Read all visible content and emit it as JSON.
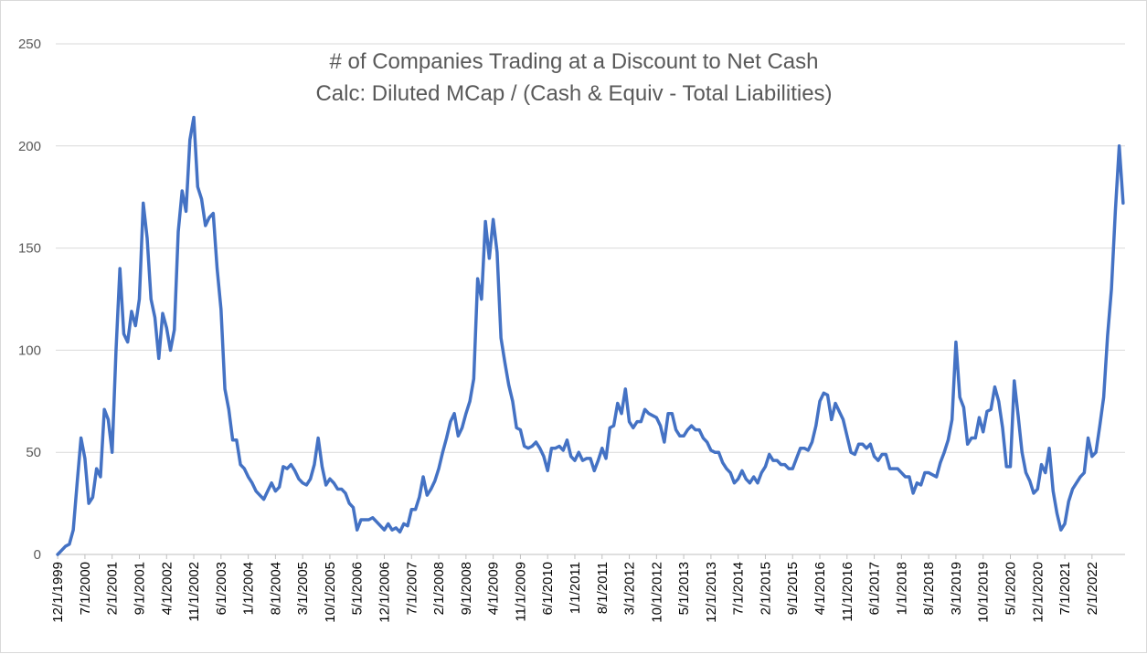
{
  "chart_data": {
    "type": "line",
    "title": "# of Companies Trading at a Discount to Net Cash",
    "subtitle": "Calc: Diluted MCap / (Cash & Equiv - Total Liabilities)",
    "xlabel": "",
    "ylabel": "",
    "ylim": [
      0,
      250
    ],
    "yticks": [
      "0",
      "50",
      "100",
      "150",
      "200",
      "250"
    ],
    "xticks": [
      "12/1/1999",
      "7/1/2000",
      "2/1/2001",
      "9/1/2001",
      "4/1/2002",
      "11/1/2002",
      "6/1/2003",
      "1/1/2004",
      "8/1/2004",
      "3/1/2005",
      "10/1/2005",
      "5/1/2006",
      "12/1/2006",
      "7/1/2007",
      "2/1/2008",
      "9/1/2008",
      "4/1/2009",
      "11/1/2009",
      "6/1/2010",
      "1/1/2011",
      "8/1/2011",
      "3/1/2012",
      "10/1/2012",
      "5/1/2013",
      "12/1/2013",
      "7/1/2014",
      "2/1/2015",
      "9/1/2015",
      "4/1/2016",
      "11/1/2016",
      "6/1/2017",
      "1/1/2018",
      "8/1/2018",
      "3/1/2019",
      "10/1/2019",
      "5/1/2020",
      "12/1/2020",
      "7/1/2021",
      "2/1/2022"
    ],
    "grid": true,
    "legend": "none",
    "line_color": "#4472c4",
    "x_start": "12/1/1999",
    "x_frequency": "monthly",
    "series": [
      {
        "values": [
          0,
          2,
          4,
          5,
          12,
          35,
          57,
          47,
          25,
          28,
          42,
          38,
          71,
          66,
          50,
          100,
          140,
          108,
          104,
          119,
          112,
          125,
          172,
          155,
          125,
          116,
          96,
          118,
          111,
          100,
          110,
          158,
          178,
          168,
          203,
          214,
          180,
          174,
          161,
          165,
          167,
          140,
          120,
          81,
          71,
          56,
          56,
          44,
          42,
          38,
          35,
          31,
          29,
          27,
          31,
          35,
          31,
          33,
          43,
          42,
          44,
          41,
          37,
          35,
          34,
          37,
          44,
          57,
          43,
          34,
          37,
          35,
          32,
          32,
          30,
          25,
          23,
          12,
          17,
          17,
          17,
          18,
          16,
          14,
          12,
          15,
          12,
          13,
          11,
          15,
          14,
          22,
          22,
          28,
          38,
          29,
          32,
          36,
          42,
          50,
          57,
          65,
          69,
          58,
          62,
          69,
          75,
          86,
          135,
          125,
          163,
          145,
          164,
          148,
          106,
          94,
          83,
          75,
          62,
          61,
          53,
          52,
          53,
          55,
          52,
          48,
          41,
          52,
          52,
          53,
          51,
          56,
          48,
          46,
          50,
          46,
          47,
          47,
          41,
          46,
          52,
          47,
          62,
          63,
          74,
          69,
          81,
          65,
          62,
          65,
          65,
          71,
          69,
          68,
          67,
          63,
          55,
          69,
          69,
          61,
          58,
          58,
          61,
          63,
          61,
          61,
          57,
          55,
          51,
          50,
          50,
          45,
          42,
          40,
          35,
          37,
          41,
          37,
          35,
          38,
          35,
          40,
          43,
          49,
          46,
          46,
          44,
          44,
          42,
          42,
          47,
          52,
          52,
          51,
          55,
          63,
          75,
          79,
          78,
          66,
          74,
          70,
          66,
          58,
          50,
          49,
          54,
          54,
          52,
          54,
          48,
          46,
          49,
          49,
          42,
          42,
          42,
          40,
          38,
          38,
          30,
          35,
          34,
          40,
          40,
          39,
          38,
          45,
          50,
          56,
          66,
          104,
          77,
          72,
          54,
          57,
          57,
          67,
          60,
          70,
          71,
          82,
          75,
          62,
          43,
          43,
          85,
          68,
          50,
          40,
          36,
          30,
          32,
          44,
          40,
          52,
          31,
          20,
          12,
          15,
          26,
          32,
          35,
          38,
          40,
          57,
          48,
          50,
          63,
          77,
          107,
          130,
          168,
          200,
          172
        ]
      }
    ]
  }
}
